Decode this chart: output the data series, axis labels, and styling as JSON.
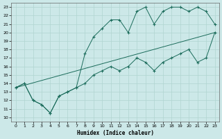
{
  "xlabel": "Humidex (Indice chaleur)",
  "xlim": [
    -0.5,
    23.5
  ],
  "ylim": [
    9.5,
    23.5
  ],
  "xticks": [
    0,
    1,
    2,
    3,
    4,
    5,
    6,
    7,
    8,
    9,
    10,
    11,
    12,
    13,
    14,
    15,
    16,
    17,
    18,
    19,
    20,
    21,
    22,
    23
  ],
  "yticks": [
    10,
    11,
    12,
    13,
    14,
    15,
    16,
    17,
    18,
    19,
    20,
    21,
    22,
    23
  ],
  "background_color": "#cce8e8",
  "grid_color": "#b0d4d0",
  "line_color": "#1a6b5a",
  "line1_x": [
    0,
    1,
    2,
    3,
    4,
    5,
    6,
    7,
    8,
    9,
    10,
    11,
    12,
    13,
    14,
    15,
    16,
    17,
    18,
    19,
    20,
    21,
    22,
    23
  ],
  "line1_y": [
    13.5,
    14.0,
    12.0,
    11.5,
    10.5,
    12.5,
    13.0,
    13.5,
    14.0,
    15.0,
    15.5,
    16.0,
    15.5,
    16.0,
    17.0,
    16.5,
    15.5,
    16.5,
    17.0,
    17.5,
    18.0,
    16.5,
    17.0,
    20.0
  ],
  "line2_x": [
    0,
    1,
    2,
    3,
    4,
    5,
    6,
    7,
    8,
    9,
    10,
    11,
    12,
    13,
    14,
    15,
    16,
    17,
    18,
    19,
    20,
    21,
    22,
    23
  ],
  "line2_y": [
    13.5,
    14.0,
    12.0,
    11.5,
    10.5,
    12.5,
    13.0,
    13.5,
    17.5,
    19.5,
    20.5,
    21.5,
    21.5,
    20.0,
    22.5,
    23.0,
    21.0,
    22.5,
    23.0,
    23.0,
    22.5,
    23.0,
    22.5,
    21.0
  ],
  "line3_x": [
    0,
    23
  ],
  "line3_y": [
    13.5,
    20.0
  ]
}
